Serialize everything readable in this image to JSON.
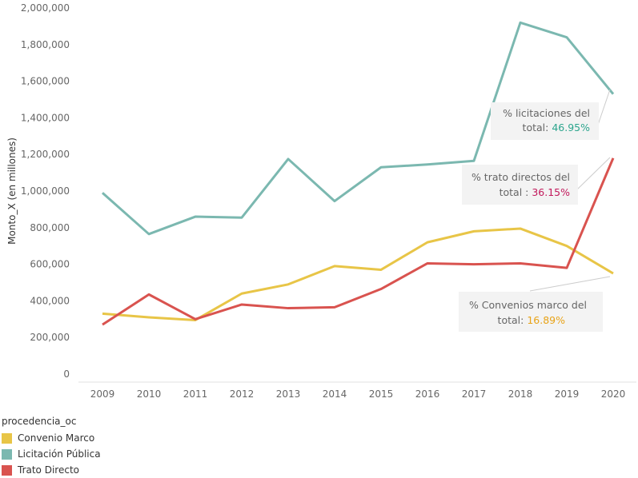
{
  "chart_data": {
    "type": "line",
    "ylabel": "Monto_X (en millones)",
    "xlabel": "",
    "ylim": [
      0,
      2000000
    ],
    "y_ticks": [
      0,
      200000,
      400000,
      600000,
      800000,
      1000000,
      1200000,
      1400000,
      1600000,
      1800000,
      2000000
    ],
    "y_tick_labels": [
      "0",
      "200,000",
      "400,000",
      "600,000",
      "800,000",
      "1,000,000",
      "1,200,000",
      "1,400,000",
      "1,600,000",
      "1,800,000",
      "2,000,000"
    ],
    "x": [
      "2009",
      "2010",
      "2011",
      "2012",
      "2013",
      "2014",
      "2015",
      "2016",
      "2017",
      "2018",
      "2019",
      "2020"
    ],
    "grid": false,
    "legend_placement": "bottom-left",
    "series": [
      {
        "name": "Convenio Marco",
        "color": "#E8C547",
        "values": [
          330000,
          310000,
          295000,
          440000,
          490000,
          590000,
          570000,
          720000,
          780000,
          795000,
          700000,
          550000
        ]
      },
      {
        "name": "Licitación Pública",
        "color": "#7BB8B0",
        "values": [
          990000,
          765000,
          860000,
          855000,
          1175000,
          945000,
          1130000,
          1145000,
          1165000,
          1920000,
          1840000,
          1530000
        ]
      },
      {
        "name": "Trato Directo",
        "color": "#D9534F",
        "values": [
          270000,
          435000,
          300000,
          380000,
          360000,
          365000,
          465000,
          605000,
          600000,
          605000,
          580000,
          1180000
        ]
      }
    ],
    "annotations": [
      {
        "line1": "% licitaciones del",
        "line2_prefix": "total: ",
        "value": "46.95%",
        "value_color": "#2CA58D",
        "series": 1
      },
      {
        "line1": "% trato directos del",
        "line2_prefix": "total : ",
        "value": "36.15%",
        "value_color": "#C2185B",
        "series": 2
      },
      {
        "line1": "% Convenios marco del",
        "line2_prefix": "total: ",
        "value": "16.89%",
        "value_color": "#E8A317",
        "series": 0
      }
    ]
  },
  "legend": {
    "title": "procedencia_oc",
    "items": [
      {
        "label": "Convenio Marco",
        "color": "#E8C547"
      },
      {
        "label": "Licitación Pública",
        "color": "#7BB8B0"
      },
      {
        "label": "Trato Directo",
        "color": "#D9534F"
      }
    ]
  }
}
